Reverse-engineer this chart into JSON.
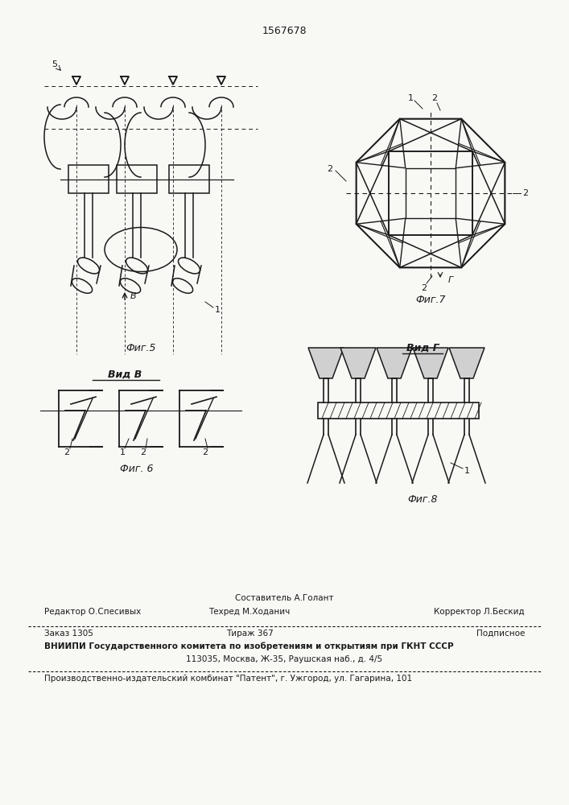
{
  "patent_number": "1567678",
  "bg_color": "#f8f8f5",
  "line_color": "#1a1a1a",
  "footer": {
    "sostavitel": "Составитель А.Голант",
    "redaktor_label": "Редактор О.Спесивых",
    "tekhred_label": "Техред М.Ходанич",
    "korrektor_label": "Корректор Л.Бескид",
    "zakaz": "Заказ 1305",
    "tirazh": "Тираж 367",
    "podpisnoe": "Подписное",
    "vniip_line": "ВНИИПИ Государственного комитета по изобретениям и открытиям при ГКНТ СССР",
    "address": "113035, Москва, Ж-35, Раушская наб., д. 4/5",
    "plant": "Производственно-издательский комбинат \"Патент\", г. Ужгород, ул. Гагарина, 101"
  }
}
